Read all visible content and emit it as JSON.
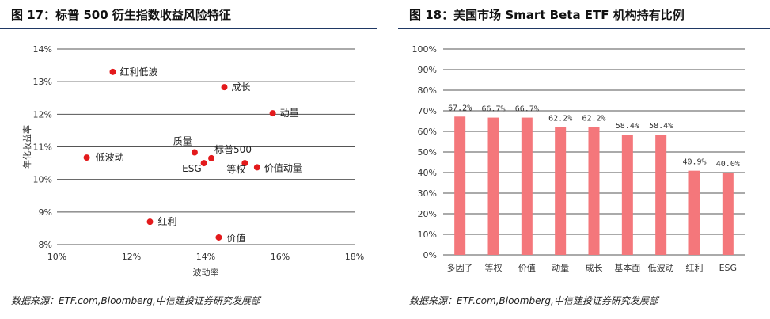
{
  "left": {
    "title": "图 17：标普 500 衍生指数收益风险特征",
    "source": "数据来源：ETF.com,Bloomberg,中信建投证券研究发展部"
  },
  "right": {
    "title": "图 18：美国市场 Smart Beta ETF 机构持有比例",
    "source": "数据来源：ETF.com,Bloomberg,中信建投证券研究发展部"
  },
  "colors": {
    "marker": "#e31a1c",
    "bar": "#f4777b",
    "gridline": "#555555",
    "title_rule": "#1f3864"
  },
  "chart_data": [
    {
      "type": "scatter",
      "xlabel": "波动率",
      "ylabel": "年化收益率",
      "xlim": [
        0.1,
        0.18
      ],
      "ylim": [
        0.08,
        0.14
      ],
      "xticks": [
        "10%",
        "12%",
        "14%",
        "16%",
        "18%"
      ],
      "yticks": [
        "8%",
        "9%",
        "10%",
        "11%",
        "12%",
        "13%",
        "14%"
      ],
      "grid": "horizontal",
      "points": [
        {
          "label": "红利低波",
          "x": 0.115,
          "y": 0.133
        },
        {
          "label": "成长",
          "x": 0.145,
          "y": 0.1283
        },
        {
          "label": "动量",
          "x": 0.158,
          "y": 0.1203
        },
        {
          "label": "低波动",
          "x": 0.108,
          "y": 0.1067
        },
        {
          "label": "质量",
          "x": 0.137,
          "y": 0.1083
        },
        {
          "label": "标普500",
          "x": 0.1415,
          "y": 0.1065
        },
        {
          "label": "ESG",
          "x": 0.1395,
          "y": 0.105
        },
        {
          "label": "等权",
          "x": 0.1505,
          "y": 0.105
        },
        {
          "label": "价值动量",
          "x": 0.1538,
          "y": 0.1037
        },
        {
          "label": "红利",
          "x": 0.125,
          "y": 0.087
        },
        {
          "label": "价值",
          "x": 0.1435,
          "y": 0.0822
        }
      ]
    },
    {
      "type": "bar",
      "categories": [
        "多因子",
        "等权",
        "价值",
        "动量",
        "成长",
        "基本面",
        "低波动",
        "红利",
        "ESG"
      ],
      "values": [
        67.2,
        66.7,
        66.7,
        62.2,
        62.2,
        58.4,
        58.4,
        40.9,
        40.0
      ],
      "value_labels": [
        "67.2%",
        "66.7%",
        "66.7%",
        "62.2%",
        "62.2%",
        "58.4%",
        "58.4%",
        "40.9%",
        "40.0%"
      ],
      "ylim": [
        0,
        100
      ],
      "yticks": [
        "0%",
        "10%",
        "20%",
        "30%",
        "40%",
        "50%",
        "60%",
        "70%",
        "80%",
        "90%",
        "100%"
      ],
      "grid": "horizontal"
    }
  ]
}
